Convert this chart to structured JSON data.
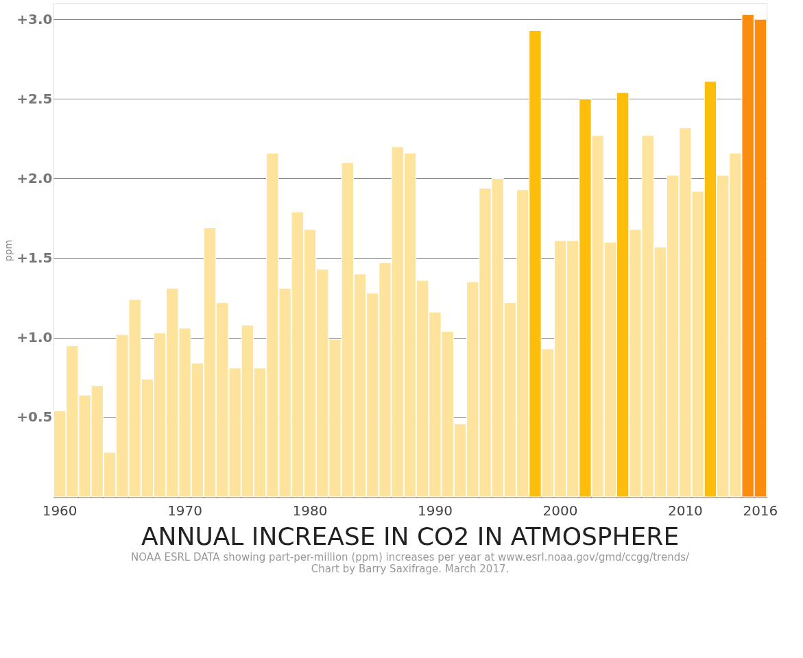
{
  "chart_data": {
    "type": "bar",
    "title": "ANNUAL INCREASE IN CO2 IN ATMOSPHERE",
    "ylabel": "ppm",
    "categories": [
      "1960",
      null,
      null,
      null,
      null,
      null,
      null,
      null,
      null,
      null,
      "1970",
      null,
      null,
      null,
      null,
      null,
      null,
      null,
      null,
      null,
      "1980",
      null,
      null,
      null,
      null,
      null,
      null,
      null,
      null,
      null,
      "1990",
      null,
      null,
      null,
      null,
      null,
      null,
      null,
      null,
      null,
      "2000",
      null,
      null,
      null,
      null,
      null,
      null,
      null,
      null,
      null,
      "2010",
      null,
      null,
      null,
      null,
      null,
      "2016"
    ],
    "values": [
      0.54,
      0.95,
      0.64,
      0.7,
      0.28,
      1.02,
      1.24,
      0.74,
      1.03,
      1.31,
      1.06,
      0.84,
      1.69,
      1.22,
      0.81,
      1.08,
      0.81,
      2.16,
      1.31,
      1.79,
      1.68,
      1.43,
      0.99,
      2.1,
      1.4,
      1.28,
      1.47,
      2.2,
      2.16,
      1.36,
      1.16,
      1.04,
      0.46,
      1.35,
      1.94,
      2.0,
      1.22,
      1.93,
      2.93,
      0.93,
      1.61,
      1.61,
      2.5,
      2.27,
      1.6,
      2.54,
      1.68,
      2.27,
      1.57,
      2.02,
      2.32,
      1.92,
      2.61,
      2.02,
      2.16,
      3.03,
      3.0
    ],
    "colors": [
      "#fde39c",
      "#fde39c",
      "#fde39c",
      "#fde39c",
      "#fde39c",
      "#fde39c",
      "#fde39c",
      "#fde39c",
      "#fde39c",
      "#fde39c",
      "#fde39c",
      "#fde39c",
      "#fde39c",
      "#fde39c",
      "#fde39c",
      "#fde39c",
      "#fde39c",
      "#fde39c",
      "#fde39c",
      "#fde39c",
      "#fde39c",
      "#fde39c",
      "#fde39c",
      "#fde39c",
      "#fde39c",
      "#fde39c",
      "#fde39c",
      "#fde39c",
      "#fde39c",
      "#fde39c",
      "#fde39c",
      "#fde39c",
      "#fde39c",
      "#fde39c",
      "#fde39c",
      "#fde39c",
      "#fde39c",
      "#fde39c",
      "#fcbd0b",
      "#fde39c",
      "#fde39c",
      "#fde39c",
      "#fcbd0b",
      "#fde39c",
      "#fde39c",
      "#fcbd0b",
      "#fde39c",
      "#fde39c",
      "#fde39c",
      "#fde39c",
      "#fde39c",
      "#fde39c",
      "#fcbd0b",
      "#fde39c",
      "#fde39c",
      "#fb8c10",
      "#fb8c10"
    ],
    "ylim": [
      0,
      3.1
    ],
    "yticks": [
      {
        "value": 0.5,
        "label": "+0.5"
      },
      {
        "value": 1.0,
        "label": "+1.0"
      },
      {
        "value": 1.5,
        "label": "+1.5"
      },
      {
        "value": 2.0,
        "label": "+2.0"
      },
      {
        "value": 2.5,
        "label": "+2.5"
      },
      {
        "value": 3.0,
        "label": "+3.0"
      }
    ],
    "grid": "y",
    "annotations": [
      "NOAA ESRL DATA showing part-per-million (ppm) increases per year at www.esrl.noaa.gov/gmd/ccgg/trends/",
      "Chart by Barry Saxifrage. March 2017."
    ]
  }
}
